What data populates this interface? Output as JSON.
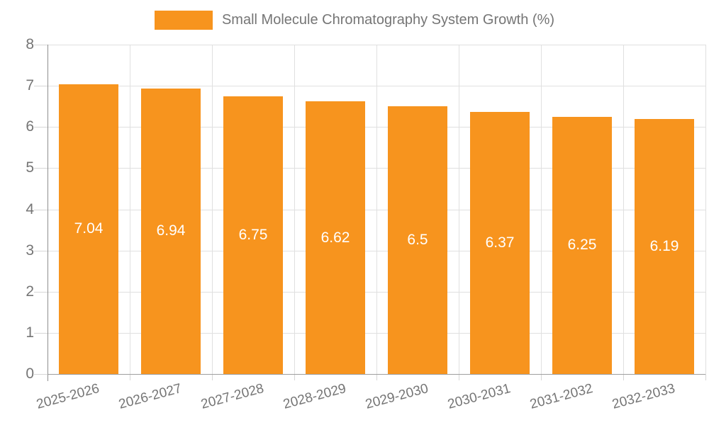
{
  "legend": {
    "label": "Small Molecule Chromatography System Growth (%)"
  },
  "chart_data": {
    "type": "bar",
    "title": "Small Molecule Chromatography System Growth (%)",
    "categories": [
      "2025-2026",
      "2026-2027",
      "2027-2028",
      "2028-2029",
      "2029-2030",
      "2030-2031",
      "2031-2032",
      "2032-2033"
    ],
    "values": [
      7.04,
      6.94,
      6.75,
      6.62,
      6.5,
      6.37,
      6.25,
      6.19
    ],
    "value_labels": [
      "7.04",
      "6.94",
      "6.75",
      "6.62",
      "6.5",
      "6.37",
      "6.25",
      "6.19"
    ],
    "xlabel": "",
    "ylabel": "",
    "ylim": [
      0,
      8
    ],
    "yticks": [
      0,
      1,
      2,
      3,
      4,
      5,
      6,
      7,
      8
    ],
    "grid": true,
    "legend_position": "top",
    "x_label_rotation_deg": -15
  },
  "colors": {
    "bar": "#F7941E",
    "value_label": "#FFFFFF",
    "axis_text": "#757575",
    "grid_line": "#E0E0E0",
    "axis_line": "#8F8F8F",
    "background": "#FFFFFF"
  }
}
